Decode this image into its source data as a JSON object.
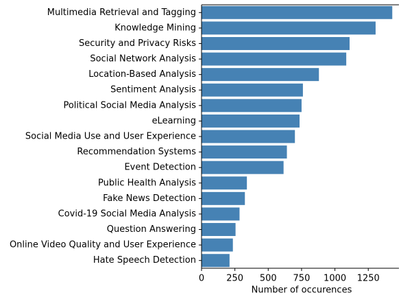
{
  "chart_data": {
    "type": "barh",
    "xlabel": "Number of occurences",
    "categories": [
      "Multimedia Retrieval and Tagging",
      "Knowledge Mining",
      "Security and Privacy Risks",
      "Social Network Analysis",
      "Location-Based Analysis",
      "Sentiment Analysis",
      "Political Social Media Analysis",
      "eLearning",
      "Social Media Use and User Experience",
      "Recommendation Systems",
      "Event Detection",
      "Public Health Analysis",
      "Fake News Detection",
      "Covid-19 Social Media Analysis",
      "Question Answering",
      "Online Video Quality and User Experience",
      "Hate Speech Detection"
    ],
    "values": [
      1430,
      1305,
      1110,
      1085,
      880,
      760,
      750,
      735,
      700,
      640,
      615,
      340,
      325,
      285,
      255,
      235,
      210
    ],
    "color": "#4682b4",
    "xlim": [
      0,
      1480
    ],
    "xticks": [
      0,
      250,
      500,
      750,
      1000,
      1250
    ]
  }
}
